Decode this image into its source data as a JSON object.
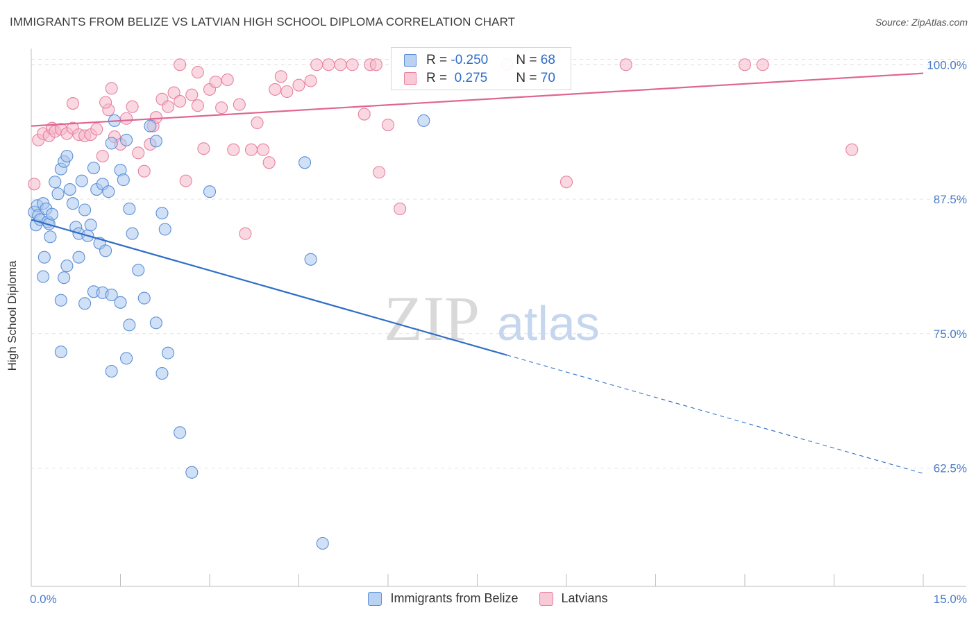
{
  "title": "IMMIGRANTS FROM BELIZE VS LATVIAN HIGH SCHOOL DIPLOMA CORRELATION CHART",
  "source": "Source: ZipAtlas.com",
  "watermark": {
    "zip": "ZIP",
    "atlas": "atlas"
  },
  "colors": {
    "blue_fill": "#a9c6ee",
    "blue_stroke": "#5b8fd6",
    "blue_line": "#2f6ec8",
    "pink_fill": "#f5b8cb",
    "pink_stroke": "#e6819f",
    "pink_line": "#e0658f",
    "tick_label": "#4a7cc9",
    "grid": "#e2e2e2"
  },
  "legend": {
    "rows": [
      {
        "r_label": "R = ",
        "r_value": "-0.250",
        "n_label": "N = ",
        "n_value": "68"
      },
      {
        "r_label": "R = ",
        "r_value": " 0.275",
        "n_label": "N = ",
        "n_value": "70"
      }
    ]
  },
  "bottom_legend": [
    "Immigrants from Belize",
    "Latvians"
  ],
  "chart_data": {
    "type": "scatter",
    "title": "IMMIGRANTS FROM BELIZE VS LATVIAN HIGH SCHOOL DIPLOMA CORRELATION CHART",
    "xlabel": "",
    "ylabel": "High School Diploma",
    "xlim": [
      0,
      15
    ],
    "ylim": [
      51.5,
      101.5
    ],
    "x_tick_labels": [
      "0.0%",
      "15.0%"
    ],
    "y_ticks": [
      62.5,
      75.0,
      87.5,
      100.0
    ],
    "y_tick_labels": [
      "62.5%",
      "75.0%",
      "87.5%",
      "100.0%"
    ],
    "grid": true,
    "series": [
      {
        "name": "Immigrants from Belize",
        "color": "#5b8fd6",
        "r": -0.25,
        "n": 68,
        "trend": {
          "x0": 0.0,
          "y0": 85.6,
          "x1": 8.0,
          "y1": 73.0,
          "dash_to_x": 15.0,
          "dash_to_y": 62.0
        },
        "points": [
          [
            0.05,
            86.3
          ],
          [
            0.08,
            85.1
          ],
          [
            0.1,
            86.9
          ],
          [
            0.12,
            86.0
          ],
          [
            0.15,
            85.6
          ],
          [
            0.2,
            87.1
          ],
          [
            0.25,
            86.6
          ],
          [
            0.28,
            85.4
          ],
          [
            0.3,
            85.2
          ],
          [
            0.32,
            84.0
          ],
          [
            0.35,
            86.1
          ],
          [
            0.4,
            89.1
          ],
          [
            0.45,
            88.0
          ],
          [
            0.5,
            90.3
          ],
          [
            0.55,
            91.0
          ],
          [
            0.6,
            91.5
          ],
          [
            0.65,
            88.4
          ],
          [
            0.7,
            87.1
          ],
          [
            0.75,
            84.9
          ],
          [
            0.8,
            84.3
          ],
          [
            0.85,
            89.2
          ],
          [
            0.9,
            86.5
          ],
          [
            0.95,
            84.1
          ],
          [
            1.0,
            85.1
          ],
          [
            1.05,
            90.4
          ],
          [
            1.1,
            88.4
          ],
          [
            1.15,
            83.4
          ],
          [
            1.2,
            88.9
          ],
          [
            1.25,
            82.7
          ],
          [
            1.3,
            88.2
          ],
          [
            1.35,
            92.7
          ],
          [
            1.4,
            94.8
          ],
          [
            1.5,
            90.2
          ],
          [
            1.55,
            89.3
          ],
          [
            1.6,
            93.0
          ],
          [
            1.65,
            86.6
          ],
          [
            1.7,
            84.3
          ],
          [
            1.8,
            80.9
          ],
          [
            1.9,
            78.3
          ],
          [
            2.0,
            94.3
          ],
          [
            2.1,
            92.9
          ],
          [
            2.2,
            86.2
          ],
          [
            2.25,
            84.7
          ],
          [
            0.22,
            82.1
          ],
          [
            0.2,
            80.3
          ],
          [
            0.55,
            80.2
          ],
          [
            0.6,
            81.3
          ],
          [
            0.8,
            82.1
          ],
          [
            0.5,
            78.1
          ],
          [
            0.9,
            77.8
          ],
          [
            1.05,
            78.9
          ],
          [
            1.2,
            78.8
          ],
          [
            1.35,
            78.6
          ],
          [
            1.5,
            77.9
          ],
          [
            0.5,
            73.3
          ],
          [
            1.35,
            71.5
          ],
          [
            1.6,
            72.7
          ],
          [
            1.65,
            75.8
          ],
          [
            2.2,
            71.3
          ],
          [
            2.3,
            73.2
          ],
          [
            2.1,
            76.0
          ],
          [
            2.5,
            65.8
          ],
          [
            2.7,
            62.1
          ],
          [
            3.0,
            88.2
          ],
          [
            4.6,
            90.9
          ],
          [
            4.7,
            81.9
          ],
          [
            4.9,
            55.5
          ],
          [
            6.6,
            94.8
          ]
        ]
      },
      {
        "name": "Latvians",
        "color": "#e6819f",
        "r": 0.275,
        "n": 70,
        "trend": {
          "x0": 0.0,
          "y0": 94.3,
          "x1": 15.0,
          "y1": 99.2
        },
        "points": [
          [
            0.05,
            88.9
          ],
          [
            0.12,
            93.0
          ],
          [
            0.2,
            93.6
          ],
          [
            0.3,
            93.4
          ],
          [
            0.35,
            94.1
          ],
          [
            0.4,
            93.8
          ],
          [
            0.5,
            94.0
          ],
          [
            0.6,
            93.6
          ],
          [
            0.7,
            94.1
          ],
          [
            0.8,
            93.5
          ],
          [
            0.9,
            93.4
          ],
          [
            1.0,
            93.5
          ],
          [
            1.1,
            94.0
          ],
          [
            1.2,
            91.5
          ],
          [
            1.3,
            95.8
          ],
          [
            1.4,
            93.3
          ],
          [
            1.5,
            92.6
          ],
          [
            1.6,
            95.0
          ],
          [
            1.7,
            96.1
          ],
          [
            1.8,
            91.8
          ],
          [
            1.9,
            90.1
          ],
          [
            2.0,
            92.6
          ],
          [
            2.05,
            94.3
          ],
          [
            2.1,
            95.1
          ],
          [
            2.2,
            96.8
          ],
          [
            2.3,
            96.1
          ],
          [
            2.4,
            97.4
          ],
          [
            2.5,
            96.6
          ],
          [
            2.6,
            89.2
          ],
          [
            2.7,
            97.2
          ],
          [
            2.8,
            96.2
          ],
          [
            2.9,
            92.2
          ],
          [
            3.0,
            97.7
          ],
          [
            3.1,
            98.4
          ],
          [
            3.2,
            96.0
          ],
          [
            3.3,
            98.6
          ],
          [
            3.4,
            92.1
          ],
          [
            3.5,
            96.3
          ],
          [
            3.6,
            84.3
          ],
          [
            3.7,
            92.1
          ],
          [
            3.8,
            94.6
          ],
          [
            3.9,
            92.1
          ],
          [
            4.0,
            90.9
          ],
          [
            4.1,
            97.7
          ],
          [
            4.2,
            98.9
          ],
          [
            4.3,
            97.5
          ],
          [
            4.5,
            98.1
          ],
          [
            4.7,
            98.5
          ],
          [
            4.8,
            100.0
          ],
          [
            5.0,
            100.0
          ],
          [
            5.2,
            100.0
          ],
          [
            5.4,
            100.0
          ],
          [
            5.6,
            95.4
          ],
          [
            5.7,
            100.0
          ],
          [
            5.8,
            100.0
          ],
          [
            5.85,
            90.0
          ],
          [
            6.0,
            94.4
          ],
          [
            6.2,
            86.6
          ],
          [
            6.4,
            98.4
          ],
          [
            2.5,
            100.0
          ],
          [
            2.8,
            99.3
          ],
          [
            1.25,
            96.5
          ],
          [
            1.35,
            97.8
          ],
          [
            0.7,
            96.4
          ],
          [
            8.0,
            100.0
          ],
          [
            9.0,
            89.1
          ],
          [
            10.0,
            100.0
          ],
          [
            12.0,
            100.0
          ],
          [
            12.3,
            100.0
          ],
          [
            13.8,
            92.1
          ]
        ]
      }
    ]
  }
}
